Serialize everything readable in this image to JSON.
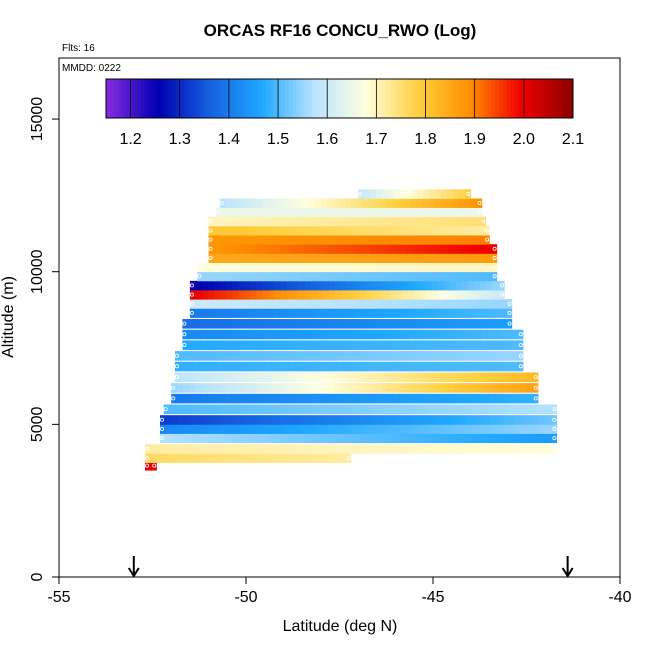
{
  "chart_data": {
    "type": "heatmap",
    "title": "ORCAS RF16 CONCU_RWO (Log)",
    "xlabel": "Latitude (deg N)",
    "ylabel": "Altitude (m)",
    "xlim": [
      -55,
      -40
    ],
    "ylim": [
      0,
      17000
    ],
    "x_ticks": [
      -55,
      -50,
      -45,
      -40
    ],
    "x_tick_labels": [
      "-55",
      "-50",
      "-45",
      "-40"
    ],
    "y_ticks": [
      0,
      5000,
      10000,
      15000
    ],
    "y_tick_labels": [
      "0",
      "5000",
      "10000",
      "15000"
    ],
    "annotations": {
      "flights": "Flts: 16",
      "date": "MMDD: 0222"
    },
    "arrows_latitude": [
      -53,
      -41.4
    ],
    "colorbar": {
      "min": 1.15,
      "max": 2.1,
      "ticks": [
        1.2,
        1.3,
        1.4,
        1.5,
        1.6,
        1.7,
        1.8,
        1.9,
        2.0,
        2.1
      ],
      "tick_labels": [
        "1.2",
        "1.3",
        "1.4",
        "1.5",
        "1.6",
        "1.7",
        "1.8",
        "1.9",
        "2.0",
        "2.1"
      ],
      "colors": [
        "#8a2be2",
        "#0000b0",
        "#1560e0",
        "#1ea8ff",
        "#b8e2ff",
        "#ffffe0",
        "#ffd040",
        "#ff9000",
        "#f00000",
        "#8b0000"
      ]
    },
    "layers": [
      {
        "alt": 3650,
        "lat_start": -52.7,
        "lat_end": -52.4,
        "value": 2.0
      },
      {
        "alt": 3900,
        "lat_start": -52.7,
        "lat_end": -47.2,
        "value": 1.76,
        "value_end": 1.72
      },
      {
        "alt": 4200,
        "lat_start": -52.7,
        "lat_end": -41.7,
        "value": 1.72,
        "value_end": 1.68
      },
      {
        "alt": 4550,
        "lat_start": -52.3,
        "lat_end": -41.7,
        "value": 1.57,
        "value_end": 1.45
      },
      {
        "alt": 4850,
        "lat_start": -52.3,
        "lat_end": -41.7,
        "value": 1.42,
        "value_end": 1.55
      },
      {
        "alt": 5150,
        "lat_start": -52.3,
        "lat_end": -41.7,
        "value": 1.32,
        "value_end": 1.52
      },
      {
        "alt": 5500,
        "lat_start": -52.2,
        "lat_end": -41.7,
        "value": 1.5,
        "value_end": 1.57
      },
      {
        "alt": 5850,
        "lat_start": -52.0,
        "lat_end": -42.2,
        "value": 1.4,
        "value_end": 1.48
      },
      {
        "alt": 6200,
        "lat_start": -52.0,
        "lat_end": -42.2,
        "value": 1.55,
        "value_end": 1.86
      },
      {
        "alt": 6550,
        "lat_start": -51.9,
        "lat_end": -42.2,
        "value": 1.58,
        "value_end": 1.82
      },
      {
        "alt": 6900,
        "lat_start": -51.9,
        "lat_end": -42.6,
        "value": 1.48,
        "value_end": 1.5
      },
      {
        "alt": 7250,
        "lat_start": -51.9,
        "lat_end": -42.6,
        "value": 1.5,
        "value_end": 1.55
      },
      {
        "alt": 7600,
        "lat_start": -51.7,
        "lat_end": -42.6,
        "value": 1.47,
        "value_end": 1.5
      },
      {
        "alt": 7950,
        "lat_start": -51.7,
        "lat_end": -42.6,
        "value": 1.42,
        "value_end": 1.5
      },
      {
        "alt": 8300,
        "lat_start": -51.7,
        "lat_end": -42.9,
        "value": 1.38,
        "value_end": 1.45
      },
      {
        "alt": 8650,
        "lat_start": -51.5,
        "lat_end": -42.9,
        "value": 1.4,
        "value_end": 1.5
      },
      {
        "alt": 8950,
        "lat_start": -51.5,
        "lat_end": -42.9,
        "value": 1.6,
        "value_end": 1.55
      },
      {
        "alt": 9250,
        "lat_start": -51.5,
        "lat_end": -43.1,
        "value": 2.0,
        "value_end": 1.6
      },
      {
        "alt": 9550,
        "lat_start": -51.5,
        "lat_end": -43.1,
        "value": 1.25,
        "value_end": 1.55
      },
      {
        "alt": 9850,
        "lat_start": -51.3,
        "lat_end": -43.3,
        "value": 1.55,
        "value_end": 1.5
      },
      {
        "alt": 10150,
        "lat_start": -51.3,
        "lat_end": -43.3,
        "value": 1.68,
        "value_end": 1.7
      },
      {
        "alt": 10450,
        "lat_start": -51.0,
        "lat_end": -43.3,
        "value": 1.85,
        "value_end": 1.87
      },
      {
        "alt": 10750,
        "lat_start": -51.0,
        "lat_end": -43.3,
        "value": 1.88,
        "value_end": 2.0
      },
      {
        "alt": 11050,
        "lat_start": -51.0,
        "lat_end": -43.5,
        "value": 1.88,
        "value_end": 1.9
      },
      {
        "alt": 11350,
        "lat_start": -51.0,
        "lat_end": -43.5,
        "value": 1.8,
        "value_end": 1.72
      },
      {
        "alt": 11650,
        "lat_start": -51.0,
        "lat_end": -43.6,
        "value": 1.7,
        "value_end": 1.75
      },
      {
        "alt": 11950,
        "lat_start": -50.8,
        "lat_end": -43.7,
        "value": 1.65,
        "value_end": 1.65
      },
      {
        "alt": 12250,
        "lat_start": -50.7,
        "lat_end": -43.7,
        "value": 1.58,
        "value_end": 1.88
      },
      {
        "alt": 12550,
        "lat_start": -47.0,
        "lat_end": -44.0,
        "value": 1.6,
        "value_end": 1.78
      }
    ]
  }
}
